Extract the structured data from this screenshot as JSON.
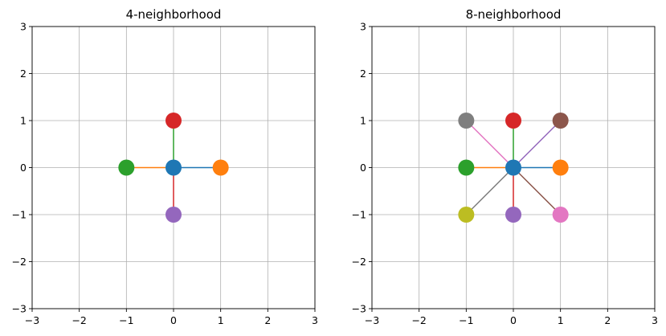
{
  "chart_data": [
    {
      "type": "scatter",
      "title": "4-neighborhood",
      "xlim": [
        -3,
        3
      ],
      "ylim": [
        -3,
        3
      ],
      "xticks": [
        -3,
        -2,
        -1,
        0,
        1,
        2,
        3
      ],
      "yticks": [
        -3,
        -2,
        -1,
        0,
        1,
        2,
        3
      ],
      "grid": true,
      "center": {
        "x": 0,
        "y": 0,
        "color": "#1f77b4"
      },
      "neighbors": [
        {
          "x": 1,
          "y": 0,
          "color": "#1f77b4",
          "marker_color": "#ff7f0e"
        },
        {
          "x": -1,
          "y": 0,
          "color": "#ff7f0e",
          "marker_color": "#2ca02c"
        },
        {
          "x": 0,
          "y": 1,
          "color": "#2ca02c",
          "marker_color": "#d62728"
        },
        {
          "x": 0,
          "y": -1,
          "color": "#d62728",
          "marker_color": "#9467bd"
        }
      ]
    },
    {
      "type": "scatter",
      "title": "8-neighborhood",
      "xlim": [
        -3,
        3
      ],
      "ylim": [
        -3,
        3
      ],
      "xticks": [
        -3,
        -2,
        -1,
        0,
        1,
        2,
        3
      ],
      "yticks": [
        -3,
        -2,
        -1,
        0,
        1,
        2,
        3
      ],
      "grid": true,
      "center": {
        "x": 0,
        "y": 0,
        "color": "#1f77b4"
      },
      "neighbors": [
        {
          "x": 1,
          "y": 0,
          "color": "#1f77b4",
          "marker_color": "#ff7f0e"
        },
        {
          "x": -1,
          "y": 0,
          "color": "#ff7f0e",
          "marker_color": "#2ca02c"
        },
        {
          "x": 0,
          "y": 1,
          "color": "#2ca02c",
          "marker_color": "#d62728"
        },
        {
          "x": 0,
          "y": -1,
          "color": "#d62728",
          "marker_color": "#9467bd"
        },
        {
          "x": 1,
          "y": 1,
          "color": "#9467bd",
          "marker_color": "#8c564b"
        },
        {
          "x": 1,
          "y": -1,
          "color": "#8c564b",
          "marker_color": "#e377c2"
        },
        {
          "x": -1,
          "y": 1,
          "color": "#e377c2",
          "marker_color": "#7f7f7f"
        },
        {
          "x": -1,
          "y": -1,
          "color": "#7f7f7f",
          "marker_color": "#bcbd22"
        }
      ]
    }
  ]
}
